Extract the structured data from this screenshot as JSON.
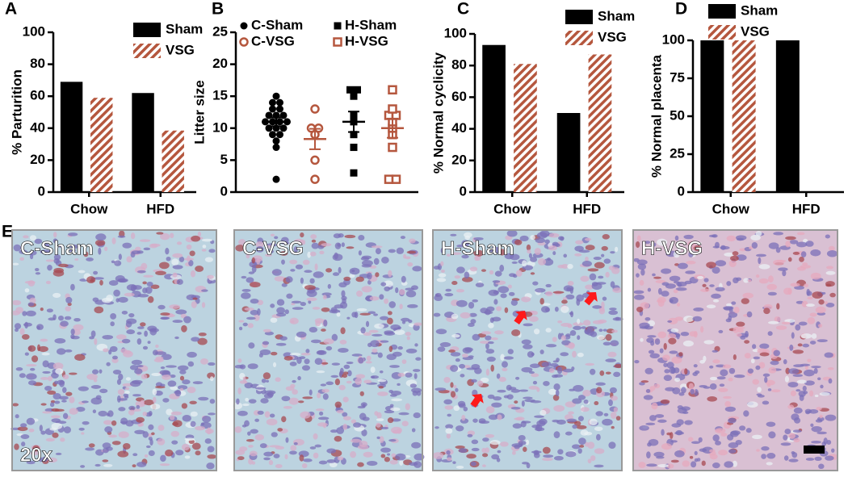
{
  "chart_data": [
    {
      "type": "bar",
      "panel": "A",
      "ylabel": "% Parturition",
      "categories": [
        "Chow",
        "HFD"
      ],
      "series": [
        {
          "name": "Sham",
          "color": "#000000",
          "values": [
            69,
            62
          ]
        },
        {
          "name": "VSG",
          "color": "#b5573e",
          "hatch": true,
          "values": [
            59,
            38.5
          ]
        }
      ],
      "ylim": [
        0,
        100
      ],
      "yticks": [
        0,
        20,
        40,
        60,
        80,
        100
      ]
    },
    {
      "type": "scatter",
      "panel": "B",
      "ylabel": "Litter size",
      "series": [
        {
          "name": "C-Sham",
          "color": "#000000",
          "marker": "circle",
          "filled": true,
          "values": [
            2,
            7,
            8,
            9,
            9,
            10,
            10,
            10,
            11,
            11,
            11,
            11,
            12,
            12,
            12,
            13,
            13,
            14,
            14,
            15
          ],
          "mean": 11,
          "sem": 0.7
        },
        {
          "name": "C-VSG",
          "color": "#b5573e",
          "marker": "circle",
          "filled": false,
          "values": [
            2,
            5,
            9,
            10,
            10,
            13
          ],
          "mean": 8.3,
          "sem": 1.6
        },
        {
          "name": "H-Sham",
          "color": "#000000",
          "marker": "square",
          "filled": true,
          "values": [
            3,
            7,
            9,
            11,
            12,
            15,
            16,
            16
          ],
          "mean": 11,
          "sem": 1.6
        },
        {
          "name": "H-VSG",
          "color": "#b5573e",
          "marker": "square",
          "filled": false,
          "values": [
            2,
            2,
            7,
            9,
            10,
            11,
            12,
            12,
            13,
            16
          ],
          "mean": 10,
          "sem": 1.5
        }
      ],
      "ylim": [
        0,
        25
      ],
      "yticks": [
        0,
        5,
        10,
        15,
        20,
        25
      ]
    },
    {
      "type": "bar",
      "panel": "C",
      "ylabel": "% Normal cyclicity",
      "categories": [
        "Chow",
        "HFD"
      ],
      "series": [
        {
          "name": "Sham",
          "color": "#000000",
          "values": [
            93,
            50
          ]
        },
        {
          "name": "VSG",
          "color": "#b5573e",
          "hatch": true,
          "values": [
            81,
            87
          ]
        }
      ],
      "ylim": [
        0,
        100
      ],
      "yticks": [
        0,
        20,
        40,
        60,
        80,
        100
      ]
    },
    {
      "type": "bar",
      "panel": "D",
      "ylabel": "% Normal placenta",
      "categories": [
        "Chow",
        "HFD"
      ],
      "series": [
        {
          "name": "Sham",
          "color": "#000000",
          "values": [
            100,
            100
          ]
        },
        {
          "name": "VSG",
          "color": "#b5573e",
          "hatch": true,
          "values": [
            100,
            0
          ]
        }
      ],
      "ylim": [
        0,
        100
      ],
      "yticks": [
        0,
        25,
        50,
        75,
        100
      ]
    }
  ],
  "panel_e": {
    "panel": "E",
    "images": [
      "C-Sham",
      "C-VSG",
      "H-Sham",
      "H-VSG"
    ],
    "magnification": "20x"
  }
}
